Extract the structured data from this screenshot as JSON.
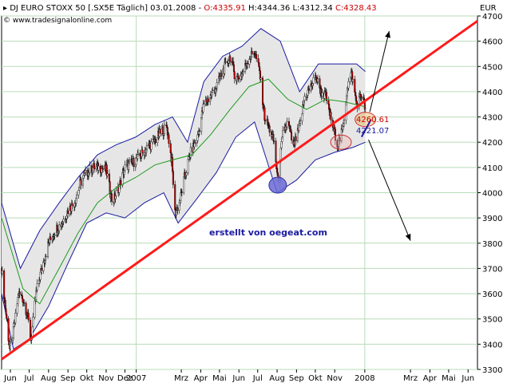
{
  "header": {
    "instrument": "DJ EURO STOXX 50 [.SX5E  Täglich] 03.01.2008 -",
    "open": "O:4335.91",
    "high": "H:4344.36",
    "low": "L:4312.34",
    "close": "C:4328.43",
    "source": "© www.tradesignalonline.com",
    "currency": "EUR"
  },
  "colors": {
    "background": "#ffffff",
    "grid": "#b8dcb8",
    "up_candle": "#ffffff",
    "down_candle": "#cc0000",
    "candle_outline": "#000000",
    "bollinger": "#1a1aa0",
    "band_fill": "#e6e6e6",
    "moving_average": "#1e9a1e",
    "trendline": "#ff1a1a",
    "annotation_blue": "#1a1aa0",
    "accent_red": "#ff0000"
  },
  "annotations": {
    "watermark": "erstellt von oegeat.com",
    "level_1": "4260.61",
    "level_2": "4221.07"
  },
  "chart_data": {
    "type": "line",
    "title": "",
    "xlabel": "",
    "ylabel": "",
    "y_axis_side": "right",
    "ylim": [
      3300,
      4700
    ],
    "yticks": [
      3300,
      3400,
      3500,
      3600,
      3700,
      3800,
      3900,
      4000,
      4100,
      4200,
      4300,
      4400,
      4500,
      4600,
      4700
    ],
    "xlim": [
      "2006-06-01",
      "2008-06-30"
    ],
    "xtick_labels": [
      {
        "label": "Jun",
        "date": "2006-06-15"
      },
      {
        "label": "Jul",
        "date": "2006-07-15"
      },
      {
        "label": "Aug",
        "date": "2006-08-15"
      },
      {
        "label": "Sep",
        "date": "2006-09-15"
      },
      {
        "label": "Okt",
        "date": "2006-10-15"
      },
      {
        "label": "Nov",
        "date": "2006-11-15"
      },
      {
        "label": "Dez",
        "date": "2006-12-15"
      },
      {
        "label": "2007",
        "date": "2007-01-02"
      },
      {
        "label": "Mrz",
        "date": "2007-03-15"
      },
      {
        "label": "Apr",
        "date": "2007-04-15"
      },
      {
        "label": "Mai",
        "date": "2007-05-15"
      },
      {
        "label": "Jun",
        "date": "2007-06-15"
      },
      {
        "label": "Jul",
        "date": "2007-07-15"
      },
      {
        "label": "Aug",
        "date": "2007-08-15"
      },
      {
        "label": "Sep",
        "date": "2007-09-15"
      },
      {
        "label": "Okt",
        "date": "2007-10-15"
      },
      {
        "label": "Nov",
        "date": "2007-11-15"
      },
      {
        "label": "2008",
        "date": "2008-01-02"
      },
      {
        "label": "Mrz",
        "date": "2008-03-15"
      },
      {
        "label": "Apr",
        "date": "2008-04-15"
      },
      {
        "label": "Mai",
        "date": "2008-05-15"
      },
      {
        "label": "Jun",
        "date": "2008-06-15"
      }
    ],
    "grid": true,
    "legend": "none",
    "series": [
      {
        "kind": "price_close",
        "points": [
          [
            "2006-06-01",
            3700
          ],
          [
            "2006-06-08",
            3520
          ],
          [
            "2006-06-14",
            3380
          ],
          [
            "2006-06-20",
            3450
          ],
          [
            "2006-06-28",
            3600
          ],
          [
            "2006-07-05",
            3580
          ],
          [
            "2006-07-12",
            3520
          ],
          [
            "2006-07-18",
            3420
          ],
          [
            "2006-07-26",
            3600
          ],
          [
            "2006-08-04",
            3700
          ],
          [
            "2006-08-15",
            3800
          ],
          [
            "2006-08-25",
            3850
          ],
          [
            "2006-09-05",
            3880
          ],
          [
            "2006-09-15",
            3930
          ],
          [
            "2006-09-25",
            3960
          ],
          [
            "2006-10-05",
            4040
          ],
          [
            "2006-10-15",
            4080
          ],
          [
            "2006-10-25",
            4100
          ],
          [
            "2006-11-05",
            4100
          ],
          [
            "2006-11-15",
            4090
          ],
          [
            "2006-11-25",
            3960
          ],
          [
            "2006-12-05",
            4020
          ],
          [
            "2006-12-15",
            4100
          ],
          [
            "2006-12-28",
            4120
          ],
          [
            "2007-01-10",
            4150
          ],
          [
            "2007-01-20",
            4180
          ],
          [
            "2007-01-30",
            4200
          ],
          [
            "2007-02-10",
            4240
          ],
          [
            "2007-02-20",
            4260
          ],
          [
            "2007-02-28",
            4120
          ],
          [
            "2007-03-05",
            3920
          ],
          [
            "2007-03-12",
            3960
          ],
          [
            "2007-03-20",
            4060
          ],
          [
            "2007-03-30",
            4160
          ],
          [
            "2007-04-10",
            4220
          ],
          [
            "2007-04-20",
            4350
          ],
          [
            "2007-04-30",
            4380
          ],
          [
            "2007-05-10",
            4420
          ],
          [
            "2007-05-20",
            4480
          ],
          [
            "2007-06-01",
            4540
          ],
          [
            "2007-06-10",
            4450
          ],
          [
            "2007-06-20",
            4470
          ],
          [
            "2007-06-30",
            4530
          ],
          [
            "2007-07-10",
            4560
          ],
          [
            "2007-07-18",
            4480
          ],
          [
            "2007-07-26",
            4300
          ],
          [
            "2007-08-03",
            4250
          ],
          [
            "2007-08-10",
            4200
          ],
          [
            "2007-08-16",
            4050
          ],
          [
            "2007-08-24",
            4230
          ],
          [
            "2007-09-01",
            4280
          ],
          [
            "2007-09-10",
            4180
          ],
          [
            "2007-09-20",
            4260
          ],
          [
            "2007-09-28",
            4380
          ],
          [
            "2007-10-08",
            4420
          ],
          [
            "2007-10-16",
            4460
          ],
          [
            "2007-10-24",
            4400
          ],
          [
            "2007-11-01",
            4380
          ],
          [
            "2007-11-10",
            4280
          ],
          [
            "2007-11-20",
            4190
          ],
          [
            "2007-11-28",
            4250
          ],
          [
            "2007-12-05",
            4420
          ],
          [
            "2007-12-12",
            4470
          ],
          [
            "2007-12-20",
            4350
          ],
          [
            "2007-12-28",
            4390
          ],
          [
            "2008-01-03",
            4328.43
          ]
        ]
      },
      {
        "kind": "moving_average",
        "points": [
          [
            "2006-06-01",
            3900
          ],
          [
            "2006-07-05",
            3620
          ],
          [
            "2006-08-01",
            3560
          ],
          [
            "2006-09-01",
            3700
          ],
          [
            "2006-10-01",
            3840
          ],
          [
            "2006-11-01",
            3960
          ],
          [
            "2006-12-01",
            4020
          ],
          [
            "2007-01-01",
            4060
          ],
          [
            "2007-02-01",
            4110
          ],
          [
            "2007-03-01",
            4130
          ],
          [
            "2007-04-01",
            4150
          ],
          [
            "2007-05-01",
            4230
          ],
          [
            "2007-06-01",
            4330
          ],
          [
            "2007-07-01",
            4420
          ],
          [
            "2007-08-01",
            4450
          ],
          [
            "2007-09-01",
            4370
          ],
          [
            "2007-10-01",
            4330
          ],
          [
            "2007-11-01",
            4370
          ],
          [
            "2007-12-01",
            4360
          ],
          [
            "2008-01-03",
            4340
          ]
        ]
      },
      {
        "kind": "bollinger_upper",
        "points": [
          [
            "2006-06-01",
            3960
          ],
          [
            "2006-07-01",
            3700
          ],
          [
            "2006-08-01",
            3850
          ],
          [
            "2006-09-01",
            3960
          ],
          [
            "2006-10-01",
            4060
          ],
          [
            "2006-11-01",
            4150
          ],
          [
            "2006-12-01",
            4190
          ],
          [
            "2007-01-01",
            4220
          ],
          [
            "2007-02-01",
            4270
          ],
          [
            "2007-03-01",
            4300
          ],
          [
            "2007-03-25",
            4200
          ],
          [
            "2007-04-20",
            4440
          ],
          [
            "2007-05-20",
            4540
          ],
          [
            "2007-06-20",
            4580
          ],
          [
            "2007-07-20",
            4650
          ],
          [
            "2007-08-20",
            4600
          ],
          [
            "2007-09-20",
            4400
          ],
          [
            "2007-10-20",
            4510
          ],
          [
            "2007-11-20",
            4510
          ],
          [
            "2007-12-20",
            4510
          ],
          [
            "2008-01-03",
            4480
          ]
        ]
      },
      {
        "kind": "bollinger_lower",
        "points": [
          [
            "2006-06-01",
            3600
          ],
          [
            "2006-06-20",
            3380
          ],
          [
            "2006-07-15",
            3420
          ],
          [
            "2006-08-15",
            3550
          ],
          [
            "2006-09-15",
            3720
          ],
          [
            "2006-10-15",
            3880
          ],
          [
            "2006-11-15",
            3920
          ],
          [
            "2006-12-15",
            3900
          ],
          [
            "2007-01-15",
            3960
          ],
          [
            "2007-02-15",
            4000
          ],
          [
            "2007-03-10",
            3880
          ],
          [
            "2007-04-10",
            3980
          ],
          [
            "2007-05-10",
            4080
          ],
          [
            "2007-06-10",
            4220
          ],
          [
            "2007-07-10",
            4280
          ],
          [
            "2007-08-15",
            4000
          ],
          [
            "2007-09-15",
            4050
          ],
          [
            "2007-10-15",
            4130
          ],
          [
            "2007-11-15",
            4160
          ],
          [
            "2007-12-15",
            4180
          ],
          [
            "2008-01-03",
            4200
          ]
        ]
      },
      {
        "kind": "trendline",
        "points": [
          [
            "2006-06-01",
            3340
          ],
          [
            "2008-06-30",
            4680
          ]
        ]
      }
    ],
    "forecast_arrows": [
      {
        "from": [
          "2008-01-10",
          4320
        ],
        "to": [
          "2008-02-10",
          4640
        ]
      },
      {
        "from": [
          "2008-01-08",
          4210
        ],
        "to": [
          "2008-03-15",
          3810
        ]
      }
    ],
    "highlights": [
      {
        "center": [
          "2007-08-16",
          4030
        ],
        "color": "#6a6ad6"
      },
      {
        "center": [
          "2007-11-25",
          4200
        ],
        "color": "#f2b0b0"
      },
      {
        "center": [
          "2008-01-03",
          4290
        ],
        "color": "#e0a030"
      }
    ]
  }
}
